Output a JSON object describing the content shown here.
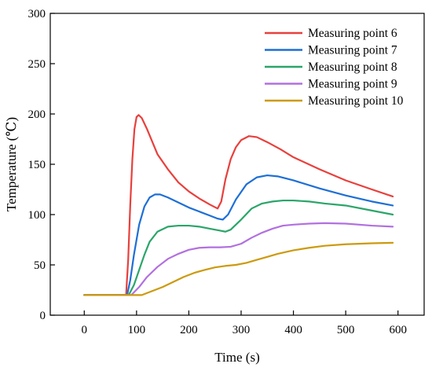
{
  "chart_data": {
    "type": "line",
    "title": "",
    "xlabel": "Time (s)",
    "ylabel": "Temperature (℃)",
    "xlim": [
      -65,
      650
    ],
    "ylim": [
      0,
      300
    ],
    "xticks": [
      0,
      100,
      200,
      300,
      400,
      500,
      600
    ],
    "yticks": [
      0,
      50,
      100,
      150,
      200,
      250,
      300
    ],
    "grid": false,
    "legend_position": "top-right",
    "series": [
      {
        "name": "Measuring point 6",
        "color": "#e8403c",
        "points": [
          [
            0,
            20
          ],
          [
            80,
            20
          ],
          [
            84,
            55
          ],
          [
            88,
            110
          ],
          [
            92,
            155
          ],
          [
            96,
            185
          ],
          [
            100,
            197
          ],
          [
            104,
            199
          ],
          [
            110,
            196
          ],
          [
            120,
            185
          ],
          [
            140,
            160
          ],
          [
            160,
            145
          ],
          [
            180,
            132
          ],
          [
            200,
            123
          ],
          [
            220,
            116
          ],
          [
            240,
            110
          ],
          [
            255,
            106
          ],
          [
            262,
            113
          ],
          [
            270,
            135
          ],
          [
            280,
            155
          ],
          [
            290,
            167
          ],
          [
            300,
            174
          ],
          [
            315,
            178
          ],
          [
            330,
            177
          ],
          [
            350,
            172
          ],
          [
            375,
            165
          ],
          [
            400,
            157
          ],
          [
            450,
            145
          ],
          [
            500,
            134
          ],
          [
            550,
            125
          ],
          [
            590,
            118
          ]
        ]
      },
      {
        "name": "Measuring point 7",
        "color": "#1e6fd6",
        "points": [
          [
            0,
            20
          ],
          [
            82,
            20
          ],
          [
            88,
            35
          ],
          [
            95,
            60
          ],
          [
            105,
            90
          ],
          [
            115,
            108
          ],
          [
            125,
            117
          ],
          [
            135,
            120
          ],
          [
            145,
            120
          ],
          [
            160,
            117
          ],
          [
            180,
            112
          ],
          [
            200,
            107
          ],
          [
            220,
            103
          ],
          [
            240,
            99
          ],
          [
            255,
            96
          ],
          [
            265,
            95
          ],
          [
            275,
            100
          ],
          [
            290,
            115
          ],
          [
            310,
            130
          ],
          [
            330,
            137
          ],
          [
            350,
            139
          ],
          [
            370,
            138
          ],
          [
            400,
            134
          ],
          [
            450,
            126
          ],
          [
            500,
            119
          ],
          [
            550,
            113
          ],
          [
            590,
            109
          ]
        ]
      },
      {
        "name": "Measuring point 8",
        "color": "#2ba56a",
        "points": [
          [
            0,
            20
          ],
          [
            85,
            20
          ],
          [
            95,
            30
          ],
          [
            105,
            45
          ],
          [
            115,
            60
          ],
          [
            125,
            73
          ],
          [
            140,
            83
          ],
          [
            160,
            88
          ],
          [
            180,
            89
          ],
          [
            200,
            89
          ],
          [
            220,
            88
          ],
          [
            240,
            86
          ],
          [
            260,
            84
          ],
          [
            270,
            83
          ],
          [
            280,
            85
          ],
          [
            300,
            95
          ],
          [
            320,
            106
          ],
          [
            340,
            111
          ],
          [
            360,
            113
          ],
          [
            380,
            114
          ],
          [
            400,
            114
          ],
          [
            430,
            113
          ],
          [
            460,
            111
          ],
          [
            500,
            109
          ],
          [
            550,
            104
          ],
          [
            590,
            100
          ]
        ]
      },
      {
        "name": "Measuring point 9",
        "color": "#b270e0",
        "points": [
          [
            0,
            20
          ],
          [
            90,
            20
          ],
          [
            105,
            28
          ],
          [
            120,
            38
          ],
          [
            140,
            48
          ],
          [
            160,
            56
          ],
          [
            180,
            61
          ],
          [
            200,
            65
          ],
          [
            220,
            67
          ],
          [
            240,
            67.5
          ],
          [
            260,
            67.5
          ],
          [
            280,
            68
          ],
          [
            300,
            71
          ],
          [
            320,
            77
          ],
          [
            340,
            82
          ],
          [
            360,
            86
          ],
          [
            380,
            89
          ],
          [
            400,
            90
          ],
          [
            430,
            91
          ],
          [
            460,
            91.5
          ],
          [
            500,
            91
          ],
          [
            550,
            89
          ],
          [
            590,
            88
          ]
        ]
      },
      {
        "name": "Measuring point 10",
        "color": "#cc9a0e",
        "points": [
          [
            0,
            20
          ],
          [
            110,
            20
          ],
          [
            130,
            24
          ],
          [
            150,
            28
          ],
          [
            170,
            33
          ],
          [
            190,
            38
          ],
          [
            210,
            42
          ],
          [
            230,
            45
          ],
          [
            250,
            47.5
          ],
          [
            270,
            49
          ],
          [
            290,
            50
          ],
          [
            310,
            52
          ],
          [
            330,
            55
          ],
          [
            350,
            58
          ],
          [
            370,
            61
          ],
          [
            400,
            64.5
          ],
          [
            430,
            67
          ],
          [
            460,
            69
          ],
          [
            500,
            70.5
          ],
          [
            550,
            71.5
          ],
          [
            590,
            72
          ]
        ]
      }
    ]
  }
}
